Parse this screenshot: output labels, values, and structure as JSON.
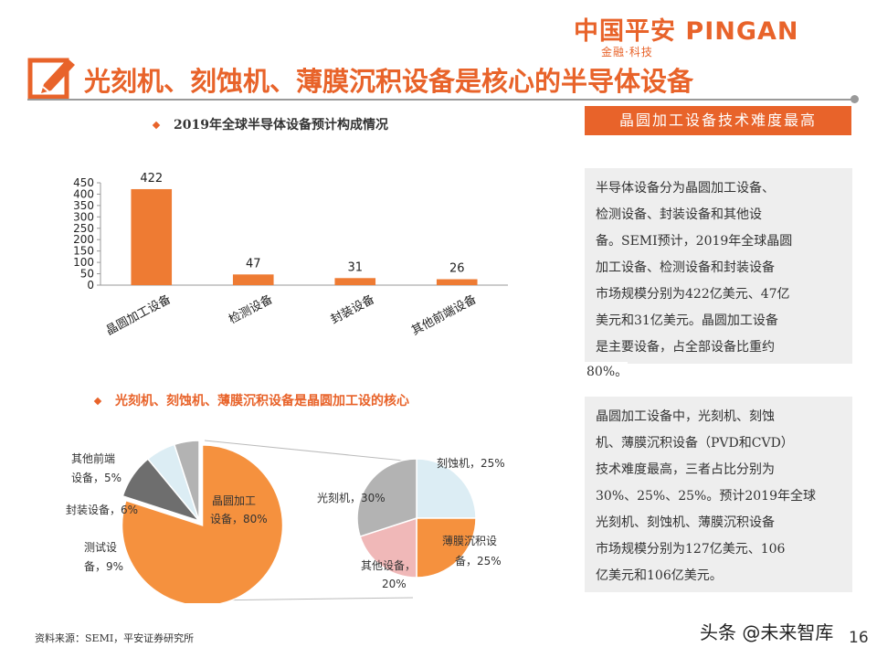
{
  "header": {
    "logo_text": "中国平安 PINGAN",
    "logo_subtitle": "金融·科技",
    "title": "光刻机、刻蚀机、薄膜沉积设备是核心的半导体设备"
  },
  "colors": {
    "accent": "#e8632a",
    "pie_main": "#f5913e",
    "pie_gray": "#6e6e6e",
    "pie_lightblue": "#dcedf4",
    "pie_lightgray": "#b3b3b3",
    "pie_pink": "#f0b8b8"
  },
  "section1": {
    "heading": "2019年全球半导体设备预计构成情况"
  },
  "section2": {
    "heading": "光刻机、刻蚀机、薄膜沉积设备是晶圆加工设的核心"
  },
  "chart_data": [
    {
      "type": "bar",
      "categories": [
        "晶圆加工设备",
        "检测设备",
        "封装设备",
        "其他前端设备"
      ],
      "values": [
        422,
        47,
        31,
        26
      ],
      "data_labels": [
        "422",
        "47",
        "31",
        "26"
      ],
      "title": "",
      "xlabel": "",
      "ylabel": "",
      "ylim": [
        0,
        450
      ],
      "yticks": [
        0,
        50,
        100,
        150,
        200,
        250,
        300,
        350,
        400,
        450
      ],
      "ytick_labels": [
        "0",
        "50",
        "100",
        "150",
        "200",
        "250",
        "300",
        "350",
        "400",
        "450"
      ],
      "grid": false,
      "color": "#ee7b33"
    },
    {
      "type": "pie",
      "slices": [
        {
          "label": "晶圆加工设备，80%",
          "value": 80
        },
        {
          "label": "测试设备，9%",
          "value": 9
        },
        {
          "label": "封装设备，6%",
          "value": 6
        },
        {
          "label": "其他前端设备，5%",
          "value": 5
        }
      ]
    },
    {
      "type": "pie",
      "slices": [
        {
          "label": "刻蚀机，25%",
          "value": 25
        },
        {
          "label": "薄膜沉积设备，25%",
          "value": 25
        },
        {
          "label": "其他设备，20%",
          "value": 20
        },
        {
          "label": "光刻机，30%",
          "value": 30
        }
      ]
    }
  ],
  "pie_labels": {
    "main_1": "晶圆加工",
    "main_2": "设备，80%",
    "test_1": "测试设",
    "test_2": "备，9%",
    "pack": "封装设备，6%",
    "other_1": "其他前端",
    "other_2": "设备，5%",
    "etch": "刻蚀机，25%",
    "thin_1": "薄膜沉积设",
    "thin_2": "备，25%",
    "otherdev_1": "其他设备，",
    "otherdev_2": "20%",
    "litho": "光刻机，30%"
  },
  "right_panel": {
    "header": "晶圆加工设备技术难度最高",
    "box1_lines": [
      "半导体设备分为晶圆加工设备、",
      "检测设备、封装设备和其他设",
      "备。SEMI预计，2019年全球晶圆",
      "加工设备、检测设备和封装设备",
      "市场规模分别为422亿美元、47亿",
      "美元和31亿美元。晶圆加工设备",
      "是主要设备，占全部设备比重约"
    ],
    "box1_tail": "80%。",
    "box2_lines": [
      "晶圆加工设备中，光刻机、刻蚀",
      "机、薄膜沉积设备（PVD和CVD）",
      "技术难度最高，三者占比分别为",
      "30%、25%、25%。预计2019年全球",
      "光刻机、刻蚀机、薄膜沉积设备",
      "市场规模分别为127亿美元、106",
      "亿美元和106亿美元。"
    ]
  },
  "footer": {
    "source": "资料来源：SEMI，平安证券研究所",
    "watermark": "头条 @未来智库",
    "page_number": "16"
  }
}
